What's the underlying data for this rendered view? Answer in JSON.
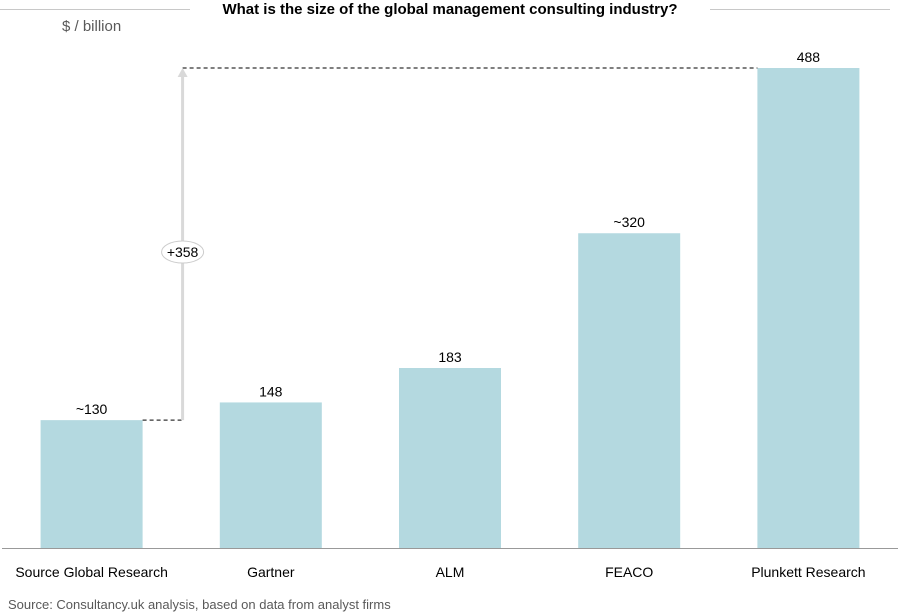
{
  "title": "What is the size of the global management consulting industry?",
  "unit_label": "$ / billion",
  "source": "Source: Consultancy.uk analysis, based on data from analyst firms",
  "colors": {
    "bar": "#b4d9e0",
    "axis": "#999999",
    "arrow": "#d9d9d9",
    "dash": "#333333"
  },
  "chart_data": {
    "type": "bar",
    "categories": [
      "Source Global Research",
      "Gartner",
      "ALM",
      "FEACO",
      "Plunkett Research"
    ],
    "values": [
      130,
      148,
      183,
      320,
      488
    ],
    "data_labels": [
      "~130",
      "148",
      "183",
      "~320",
      "488"
    ],
    "annotation": "+358",
    "ylim": [
      0,
      488
    ]
  }
}
